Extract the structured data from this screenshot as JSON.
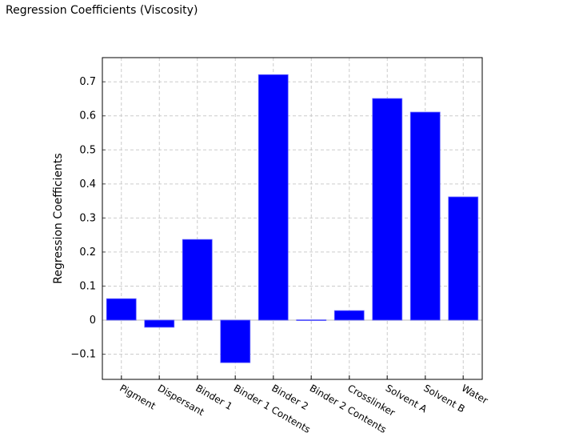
{
  "chart_data": {
    "type": "bar",
    "title": "Regression Coefficients (Viscosity)",
    "xlabel": "",
    "ylabel": "Regression Coefficients",
    "categories": [
      "Pigment",
      "Dispersant",
      "Binder 1",
      "Binder 1 Contents",
      "Binder 2",
      "Binder 2 Contents",
      "Crosslinker",
      "Solvent A",
      "Solvent B",
      "Water"
    ],
    "values": [
      0.063,
      -0.021,
      0.237,
      -0.125,
      0.721,
      0.001,
      0.028,
      0.651,
      0.611,
      0.362
    ],
    "ylim": [
      -0.174,
      0.771
    ],
    "yticks": [
      -0.1,
      0,
      0.1,
      0.2,
      0.3,
      0.4,
      0.5,
      0.6,
      0.7
    ],
    "ytick_labels": [
      "−0.1",
      "0",
      "0.1",
      "0.2",
      "0.3",
      "0.4",
      "0.5",
      "0.6",
      "0.7"
    ],
    "grid": true,
    "bar_color": "#0000ff",
    "legend": "none"
  }
}
